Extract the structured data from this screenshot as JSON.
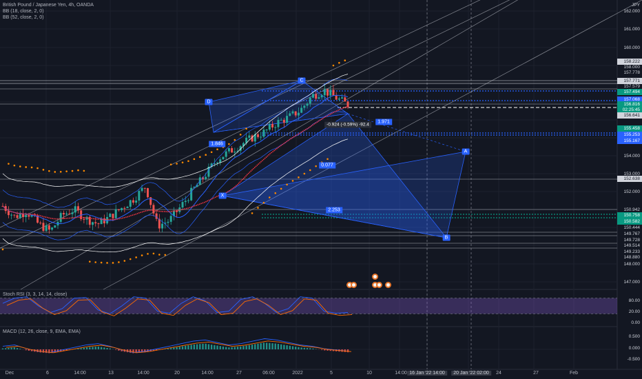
{
  "instrument": {
    "title": "British Pound / Japanese Yen, 4h, OANDA",
    "currency": "JPY",
    "indicators": [
      "BB (18, close, 2, 0)",
      "BB (52, close, 2, 0)"
    ]
  },
  "price_scale": {
    "ticks": [
      "162.000",
      "161.000",
      "160.000",
      "153.000",
      "152.000",
      "154.000",
      "148.000",
      "147.000"
    ],
    "levels": [
      {
        "label": "158.222",
        "price": 158.222,
        "style": "box"
      },
      {
        "label": "158.000",
        "price": 158.0,
        "style": "plain"
      },
      {
        "label": "157.778",
        "price": 157.778,
        "style": "plain"
      },
      {
        "label": "157.771",
        "price": 157.771,
        "style": "box"
      },
      {
        "label": "157.579",
        "price": 157.579,
        "style": "plain"
      },
      {
        "label": "157.494",
        "price": 157.494,
        "style": "green"
      },
      {
        "label": "157.068",
        "price": 157.068,
        "style": "blue"
      },
      {
        "label": "156.816",
        "price": 156.816,
        "style": "green"
      },
      {
        "label": "02:25:45",
        "price": 156.72,
        "style": "green"
      },
      {
        "label": "156.641",
        "price": 156.641,
        "style": "box"
      },
      {
        "label": "155.458",
        "price": 155.458,
        "style": "green"
      },
      {
        "label": "155.253",
        "price": 155.253,
        "style": "blue"
      },
      {
        "label": "155.167",
        "price": 155.167,
        "style": "blue"
      },
      {
        "label": "152.638",
        "price": 152.638,
        "style": "box"
      },
      {
        "label": "150.942",
        "price": 150.942,
        "style": "plain"
      },
      {
        "label": "150.758",
        "price": 150.758,
        "style": "green"
      },
      {
        "label": "150.582",
        "price": 150.582,
        "style": "green"
      },
      {
        "label": "150.444",
        "price": 150.444,
        "style": "plain"
      },
      {
        "label": "149.767",
        "price": 149.767,
        "style": "plain"
      },
      {
        "label": "149.728",
        "price": 149.728,
        "style": "plain"
      },
      {
        "label": "149.514",
        "price": 149.514,
        "style": "plain"
      },
      {
        "label": "149.233",
        "price": 149.233,
        "style": "plain"
      },
      {
        "label": "148.880",
        "price": 148.88,
        "style": "plain"
      }
    ]
  },
  "time_scale": {
    "labels": [
      "Dec",
      "6",
      "14:00",
      "13",
      "14:00",
      "20",
      "14:00",
      "27",
      "06:00",
      "2022",
      "5",
      "10",
      "14:00",
      "24",
      "27",
      "Feb"
    ],
    "boxed": [
      "16 Jan '22   14:00",
      "20 Jan '22   02:00"
    ]
  },
  "pattern": {
    "points": [
      "D",
      "C",
      "X",
      "A",
      "B"
    ],
    "ratios": [
      "1.846",
      "1.971",
      "0.077",
      "2.253"
    ],
    "measure": "-0.924 (-0.59%) -92.4"
  },
  "stoch_rsi": {
    "label": "Stoch RSI (3, 3, 14, 14, close)",
    "ticks": [
      "80.00",
      "20.00",
      "0.00"
    ]
  },
  "macd": {
    "label": "MACD (12, 26, close, 9, EMA, EMA)",
    "ticks": [
      "0.500",
      "0.000",
      "-0.500"
    ]
  },
  "colors": {
    "background": "#131722",
    "up": "#26a69a",
    "down": "#ef5350",
    "pattern": "#2962ff",
    "bb_inner": "#2962ff",
    "bb_outer": "#ffffff",
    "ma_red": "#f23645",
    "dots": "#ff8a00",
    "stoch_band": "#7e57c2"
  },
  "chart_data": {
    "type": "candlestick",
    "x": [
      "Dec",
      "6",
      "13",
      "20",
      "27",
      "2022",
      "5"
    ],
    "ylim": [
      146.8,
      162.2
    ],
    "price_path": [
      151.2,
      150.6,
      150.9,
      150.2,
      149.8,
      150.7,
      151.0,
      150.5,
      150.2,
      150.6,
      151.1,
      151.6,
      152.3,
      150.1,
      150.4,
      151.2,
      152.1,
      152.9,
      153.8,
      154.2,
      154.6,
      155.0,
      155.3,
      155.8,
      156.1,
      156.5,
      157.3,
      157.6,
      157.2,
      156.8
    ],
    "last_price": 156.816,
    "stoch_k": [
      60,
      80,
      85,
      50,
      25,
      40,
      80,
      82,
      35,
      20,
      50,
      85,
      80,
      30,
      22,
      60,
      85,
      70,
      25,
      30,
      75,
      85,
      60,
      25,
      40,
      85,
      80,
      30,
      22,
      25
    ],
    "macd_hist": [
      0.05,
      0.1,
      -0.05,
      -0.15,
      -0.2,
      -0.1,
      0.0,
      0.1,
      0.15,
      0.05,
      -0.1,
      -0.2,
      -0.15,
      -0.05,
      0.05,
      0.15,
      0.25,
      0.3,
      0.2,
      0.1,
      0.15,
      0.25,
      0.35,
      0.3,
      0.2,
      0.1,
      0.05,
      -0.05,
      -0.1,
      -0.15
    ]
  }
}
